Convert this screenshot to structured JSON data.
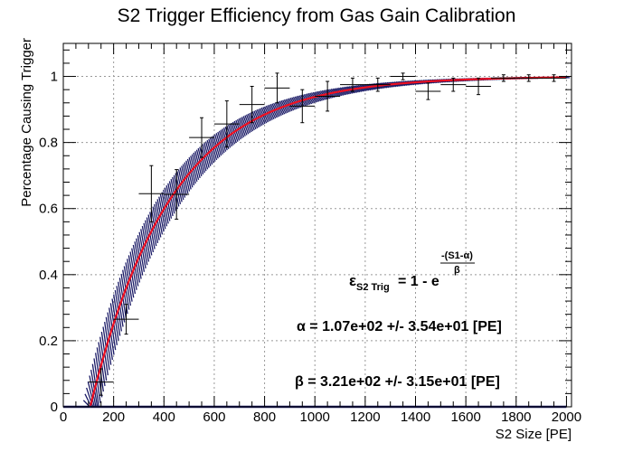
{
  "chart_data": {
    "type": "scatter",
    "title": "S2 Trigger Efficiency from Gas Gain Calibration",
    "xlabel": "S2 Size [PE]",
    "ylabel": "Percentage Causing Trigger",
    "xlim": [
      0,
      2020
    ],
    "ylim": [
      0,
      1.1
    ],
    "x_ticks": [
      0,
      200,
      400,
      600,
      800,
      1000,
      1200,
      1400,
      1600,
      1800,
      2000
    ],
    "y_ticks": [
      0,
      0.2,
      0.4,
      0.6,
      0.8,
      1
    ],
    "grid": true,
    "series": [
      {
        "kind": "points_with_errorbars",
        "points": [
          {
            "x": 150,
            "y": 0.075,
            "xerr": 50,
            "yerr": 0.04
          },
          {
            "x": 250,
            "y": 0.265,
            "xerr": 50,
            "yerr": 0.045
          },
          {
            "x": 350,
            "y": 0.645,
            "xerr": 50,
            "yerr": 0.085
          },
          {
            "x": 450,
            "y": 0.643,
            "xerr": 50,
            "yerr": 0.075
          },
          {
            "x": 550,
            "y": 0.815,
            "xerr": 50,
            "yerr": 0.06
          },
          {
            "x": 650,
            "y": 0.856,
            "xerr": 50,
            "yerr": 0.07
          },
          {
            "x": 750,
            "y": 0.915,
            "xerr": 50,
            "yerr": 0.055
          },
          {
            "x": 850,
            "y": 0.965,
            "xerr": 50,
            "yerr": 0.045
          },
          {
            "x": 950,
            "y": 0.91,
            "xerr": 50,
            "yerr": 0.05
          },
          {
            "x": 1050,
            "y": 0.94,
            "xerr": 50,
            "yerr": 0.045
          },
          {
            "x": 1150,
            "y": 0.975,
            "xerr": 50,
            "yerr": 0.02
          },
          {
            "x": 1250,
            "y": 0.975,
            "xerr": 50,
            "yerr": 0.02
          },
          {
            "x": 1350,
            "y": 1.0,
            "xerr": 50,
            "yerr": 0.01
          },
          {
            "x": 1450,
            "y": 0.955,
            "xerr": 50,
            "yerr": 0.025
          },
          {
            "x": 1550,
            "y": 0.975,
            "xerr": 50,
            "yerr": 0.02
          },
          {
            "x": 1650,
            "y": 0.97,
            "xerr": 50,
            "yerr": 0.025
          },
          {
            "x": 1750,
            "y": 0.995,
            "xerr": 50,
            "yerr": 0.01
          },
          {
            "x": 1850,
            "y": 0.995,
            "xerr": 50,
            "yerr": 0.01
          },
          {
            "x": 1950,
            "y": 0.995,
            "xerr": 50,
            "yerr": 0.01
          }
        ]
      },
      {
        "kind": "fit_curve",
        "model": "1 - exp(-(S1 - alpha)/beta)",
        "alpha": 107,
        "beta": 321,
        "x_range": [
          107,
          2000
        ],
        "color": "#ee1122",
        "band_color": "#1a1a66"
      }
    ],
    "annotations": {
      "formula_epsilon": "ε",
      "formula_sub": "S2 Trig",
      "formula_body": " = 1 - e",
      "formula_exp_num": "-(S1-α)",
      "formula_exp_den": "β",
      "alpha_text": "α = 1.07e+02 +/- 3.54e+01 [PE]",
      "beta_text": "β = 3.21e+02 +/- 3.15e+01 [PE]"
    }
  }
}
